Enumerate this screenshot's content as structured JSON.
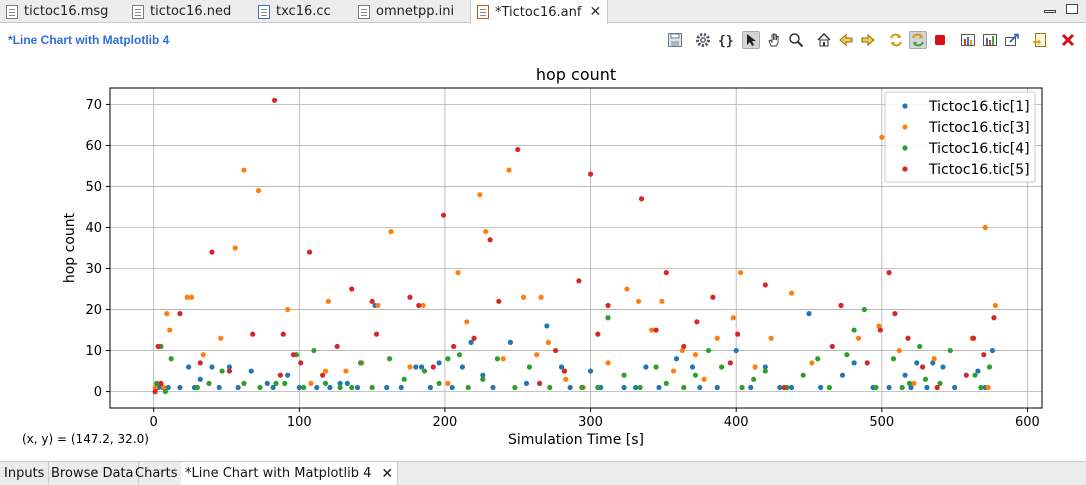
{
  "editor_tabs": [
    {
      "label": "tictoc16.msg",
      "icon": "msg-file-icon"
    },
    {
      "label": "tictoc16.ned",
      "icon": "ned-file-icon"
    },
    {
      "label": "txc16.cc",
      "icon": "cpp-file-icon"
    },
    {
      "label": "omnetpp.ini",
      "icon": "ini-file-icon"
    },
    {
      "label": "*Tictoc16.anf",
      "icon": "anf-file-icon",
      "close": "✕"
    }
  ],
  "editor": {
    "title": "*Line Chart with Matplotlib 4",
    "coords": "(x, y) = (147.2, 32.0)"
  },
  "toolbar": {
    "icons": [
      "save-icon",
      "gear-icon",
      "braces-icon",
      "pointer-icon",
      "pan-hand-icon",
      "zoom-icon",
      "home-icon",
      "back-arrow-icon",
      "forward-arrow-icon",
      "refresh-icon",
      "auto-refresh-icon",
      "stop-icon",
      "chart-copy-icon",
      "chart-export-icon",
      "export-data-icon",
      "export-image-icon",
      "goto-icon",
      "close-red-icon"
    ]
  },
  "bottom_tabs": [
    {
      "label": "Inputs"
    },
    {
      "label": "Browse Data"
    },
    {
      "label": "Charts"
    },
    {
      "label": "*Line Chart with Matplotlib 4",
      "close": "✕"
    }
  ],
  "colors": {
    "series_1": "#1f77b4",
    "series_3": "#ff7f0e",
    "series_4": "#2ca02c",
    "series_5": "#d62728",
    "accent_title": "#2f6fd6",
    "stop_red": "#e0101a"
  },
  "chart_data": {
    "type": "scatter",
    "title": "hop count",
    "xlabel": "Simulation Time [s]",
    "ylabel": "hop count",
    "xlim": [
      -30,
      610
    ],
    "ylim": [
      -4,
      74
    ],
    "xticks": [
      0,
      100,
      200,
      300,
      400,
      500,
      600
    ],
    "yticks": [
      0,
      10,
      20,
      30,
      40,
      50,
      60,
      70
    ],
    "grid": true,
    "legend": "top-right",
    "series": [
      {
        "name": "Tictoc16.tic[1]",
        "points": [
          [
            1,
            0
          ],
          [
            3,
            1
          ],
          [
            6,
            1
          ],
          [
            10,
            1
          ],
          [
            18,
            1
          ],
          [
            24,
            6
          ],
          [
            28,
            1
          ],
          [
            32,
            3
          ],
          [
            40,
            6
          ],
          [
            45,
            1
          ],
          [
            52,
            6
          ],
          [
            58,
            1
          ],
          [
            67,
            5
          ],
          [
            78,
            2
          ],
          [
            82,
            1
          ],
          [
            92,
            4
          ],
          [
            100,
            1
          ],
          [
            112,
            1
          ],
          [
            121,
            1
          ],
          [
            128,
            2
          ],
          [
            133,
            2
          ],
          [
            140,
            1
          ],
          [
            152,
            21
          ],
          [
            160,
            1
          ],
          [
            170,
            1
          ],
          [
            180,
            6
          ],
          [
            184,
            6
          ],
          [
            190,
            1
          ],
          [
            196,
            7
          ],
          [
            205,
            1
          ],
          [
            212,
            6
          ],
          [
            218,
            12
          ],
          [
            226,
            4
          ],
          [
            233,
            1
          ],
          [
            245,
            12
          ],
          [
            256,
            2
          ],
          [
            270,
            16
          ],
          [
            280,
            6
          ],
          [
            286,
            1
          ],
          [
            300,
            5
          ],
          [
            307,
            1
          ],
          [
            323,
            1
          ],
          [
            331,
            1
          ],
          [
            338,
            6
          ],
          [
            347,
            1
          ],
          [
            359,
            8
          ],
          [
            370,
            6
          ],
          [
            375,
            1
          ],
          [
            387,
            1
          ],
          [
            400,
            10
          ],
          [
            410,
            1
          ],
          [
            420,
            6
          ],
          [
            430,
            1
          ],
          [
            438,
            1
          ],
          [
            450,
            19
          ],
          [
            458,
            1
          ],
          [
            473,
            4
          ],
          [
            481,
            7
          ],
          [
            494,
            1
          ],
          [
            505,
            1
          ],
          [
            516,
            4
          ],
          [
            520,
            1
          ],
          [
            524,
            7
          ],
          [
            531,
            1
          ],
          [
            535,
            7
          ],
          [
            542,
            6
          ],
          [
            550,
            1
          ],
          [
            566,
            5
          ],
          [
            571,
            1
          ],
          [
            576,
            10
          ]
        ]
      },
      {
        "name": "Tictoc16.tic[3]",
        "points": [
          [
            1,
            1
          ],
          [
            4,
            11
          ],
          [
            7,
            1
          ],
          [
            9,
            19
          ],
          [
            11,
            15
          ],
          [
            23,
            23
          ],
          [
            26,
            23
          ],
          [
            34,
            9
          ],
          [
            46,
            13
          ],
          [
            56,
            35
          ],
          [
            62,
            54
          ],
          [
            72,
            49
          ],
          [
            92,
            20
          ],
          [
            98,
            9
          ],
          [
            108,
            2
          ],
          [
            118,
            5
          ],
          [
            120,
            22
          ],
          [
            132,
            5
          ],
          [
            143,
            7
          ],
          [
            154,
            21
          ],
          [
            163,
            39
          ],
          [
            176,
            6
          ],
          [
            185,
            21
          ],
          [
            202,
            2
          ],
          [
            209,
            29
          ],
          [
            215,
            17
          ],
          [
            224,
            48
          ],
          [
            228,
            39
          ],
          [
            240,
            8
          ],
          [
            244,
            54
          ],
          [
            254,
            23
          ],
          [
            263,
            9
          ],
          [
            266,
            23
          ],
          [
            271,
            12
          ],
          [
            283,
            3
          ],
          [
            295,
            1
          ],
          [
            312,
            7
          ],
          [
            325,
            25
          ],
          [
            333,
            22
          ],
          [
            342,
            15
          ],
          [
            349,
            22
          ],
          [
            357,
            5
          ],
          [
            363,
            10
          ],
          [
            372,
            9
          ],
          [
            378,
            3
          ],
          [
            387,
            13
          ],
          [
            398,
            18
          ],
          [
            403,
            29
          ],
          [
            413,
            6
          ],
          [
            424,
            13
          ],
          [
            438,
            24
          ],
          [
            452,
            7
          ],
          [
            472,
            21
          ],
          [
            484,
            13
          ],
          [
            498,
            16
          ],
          [
            500,
            62
          ],
          [
            512,
            10
          ],
          [
            522,
            2
          ],
          [
            536,
            8
          ],
          [
            562,
            13
          ],
          [
            571,
            40
          ],
          [
            573,
            1
          ],
          [
            578,
            21
          ]
        ]
      },
      {
        "name": "Tictoc16.tic[4]",
        "points": [
          [
            2,
            2
          ],
          [
            5,
            11
          ],
          [
            8,
            0
          ],
          [
            12,
            8
          ],
          [
            30,
            1
          ],
          [
            38,
            2
          ],
          [
            47,
            5
          ],
          [
            62,
            2
          ],
          [
            73,
            1
          ],
          [
            84,
            2
          ],
          [
            90,
            2
          ],
          [
            98,
            9
          ],
          [
            103,
            1
          ],
          [
            110,
            10
          ],
          [
            118,
            2
          ],
          [
            128,
            1
          ],
          [
            136,
            1
          ],
          [
            142,
            7
          ],
          [
            150,
            1
          ],
          [
            162,
            8
          ],
          [
            172,
            3
          ],
          [
            186,
            5
          ],
          [
            196,
            2
          ],
          [
            202,
            8
          ],
          [
            210,
            9
          ],
          [
            216,
            1
          ],
          [
            226,
            3
          ],
          [
            236,
            8
          ],
          [
            248,
            1
          ],
          [
            258,
            6
          ],
          [
            272,
            1
          ],
          [
            282,
            5
          ],
          [
            294,
            1
          ],
          [
            305,
            1
          ],
          [
            312,
            18
          ],
          [
            323,
            4
          ],
          [
            334,
            1
          ],
          [
            345,
            6
          ],
          [
            352,
            2
          ],
          [
            364,
            1
          ],
          [
            372,
            4
          ],
          [
            381,
            10
          ],
          [
            390,
            6
          ],
          [
            404,
            1
          ],
          [
            412,
            3
          ],
          [
            420,
            5
          ],
          [
            435,
            1
          ],
          [
            446,
            4
          ],
          [
            456,
            8
          ],
          [
            464,
            1
          ],
          [
            476,
            9
          ],
          [
            481,
            15
          ],
          [
            488,
            20
          ],
          [
            496,
            1
          ],
          [
            508,
            8
          ],
          [
            514,
            1
          ],
          [
            519,
            2
          ],
          [
            526,
            11
          ],
          [
            530,
            3
          ],
          [
            540,
            2
          ],
          [
            547,
            10
          ],
          [
            564,
            4
          ],
          [
            568,
            1
          ],
          [
            574,
            6
          ]
        ]
      },
      {
        "name": "Tictoc16.tic[5]",
        "points": [
          [
            1,
            0
          ],
          [
            3,
            11
          ],
          [
            5,
            2
          ],
          [
            18,
            19
          ],
          [
            32,
            7
          ],
          [
            40,
            34
          ],
          [
            52,
            5
          ],
          [
            68,
            14
          ],
          [
            83,
            71
          ],
          [
            87,
            4
          ],
          [
            89,
            14
          ],
          [
            96,
            9
          ],
          [
            101,
            7
          ],
          [
            107,
            34
          ],
          [
            116,
            4
          ],
          [
            126,
            11
          ],
          [
            136,
            25
          ],
          [
            150,
            22
          ],
          [
            153,
            14
          ],
          [
            176,
            23
          ],
          [
            182,
            21
          ],
          [
            192,
            6
          ],
          [
            199,
            43
          ],
          [
            206,
            11
          ],
          [
            220,
            13
          ],
          [
            231,
            37
          ],
          [
            237,
            22
          ],
          [
            250,
            59
          ],
          [
            265,
            2
          ],
          [
            276,
            10
          ],
          [
            282,
            5
          ],
          [
            292,
            27
          ],
          [
            300,
            53
          ],
          [
            305,
            14
          ],
          [
            312,
            21
          ],
          [
            335,
            47
          ],
          [
            345,
            15
          ],
          [
            352,
            29
          ],
          [
            364,
            11
          ],
          [
            373,
            17
          ],
          [
            384,
            23
          ],
          [
            396,
            7
          ],
          [
            401,
            14
          ],
          [
            420,
            26
          ],
          [
            433,
            1
          ],
          [
            466,
            11
          ],
          [
            472,
            21
          ],
          [
            490,
            7
          ],
          [
            499,
            15
          ],
          [
            505,
            29
          ],
          [
            509,
            19
          ],
          [
            518,
            13
          ],
          [
            528,
            6
          ],
          [
            538,
            1
          ],
          [
            558,
            4
          ],
          [
            563,
            13
          ],
          [
            570,
            9
          ],
          [
            577,
            18
          ]
        ]
      }
    ]
  }
}
